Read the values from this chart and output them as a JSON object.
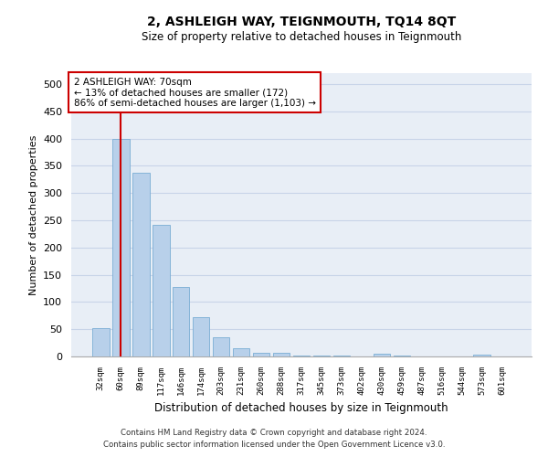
{
  "title": "2, ASHLEIGH WAY, TEIGNMOUTH, TQ14 8QT",
  "subtitle": "Size of property relative to detached houses in Teignmouth",
  "xlabel": "Distribution of detached houses by size in Teignmouth",
  "ylabel": "Number of detached properties",
  "categories": [
    "32sqm",
    "60sqm",
    "89sqm",
    "117sqm",
    "146sqm",
    "174sqm",
    "203sqm",
    "231sqm",
    "260sqm",
    "288sqm",
    "317sqm",
    "345sqm",
    "373sqm",
    "402sqm",
    "430sqm",
    "459sqm",
    "487sqm",
    "516sqm",
    "544sqm",
    "573sqm",
    "601sqm"
  ],
  "values": [
    52,
    400,
    338,
    241,
    128,
    72,
    35,
    15,
    7,
    6,
    1,
    1,
    1,
    0,
    5,
    2,
    0,
    0,
    0,
    4,
    0
  ],
  "bar_color": "#b8d0ea",
  "bar_edge_color": "#7aadd4",
  "vline_color": "#cc0000",
  "vline_pos": 1.5,
  "annotation_text": "2 ASHLEIGH WAY: 70sqm\n← 13% of detached houses are smaller (172)\n86% of semi-detached houses are larger (1,103) →",
  "annotation_box_color": "#ffffff",
  "annotation_box_edge": "#cc0000",
  "grid_color": "#c8d4e8",
  "background_color": "#e8eef6",
  "footer1": "Contains HM Land Registry data © Crown copyright and database right 2024.",
  "footer2": "Contains public sector information licensed under the Open Government Licence v3.0.",
  "ylim": [
    0,
    520
  ],
  "yticks": [
    0,
    50,
    100,
    150,
    200,
    250,
    300,
    350,
    400,
    450,
    500
  ]
}
